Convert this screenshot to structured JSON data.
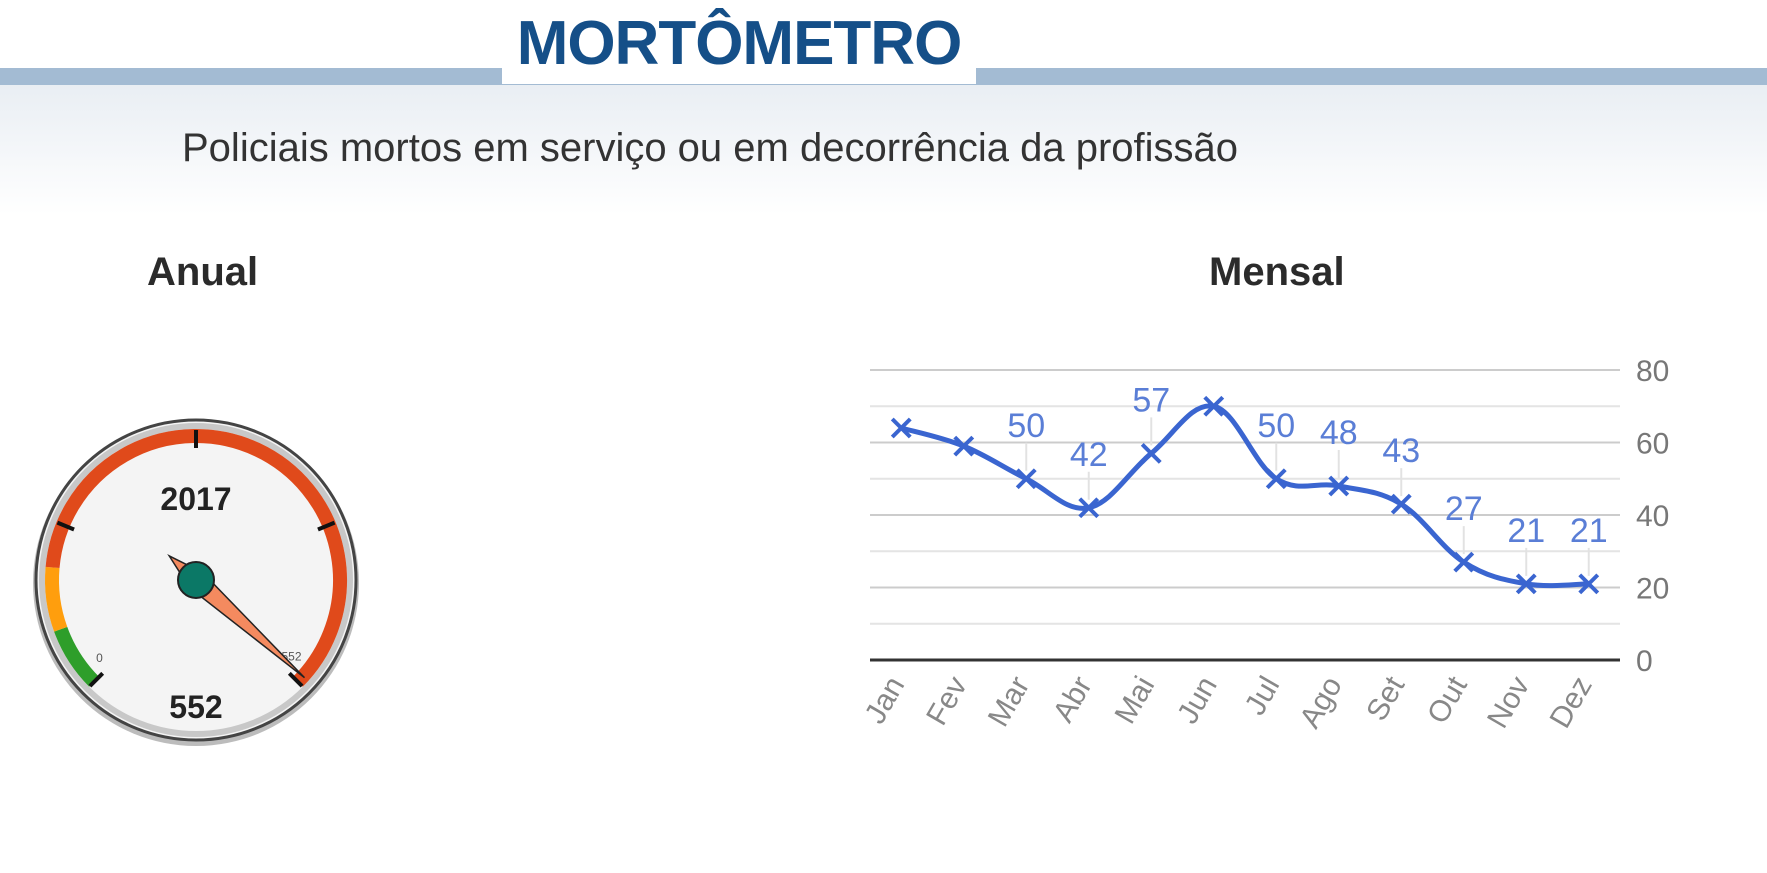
{
  "header": {
    "logo_text": "MORTÔMETRO",
    "subtitle": "Policiais mortos em serviço ou em decorrência da profissão"
  },
  "annual": {
    "title": "Anual",
    "gauge": {
      "year_label": "2017",
      "value_label": "552",
      "value": 552,
      "min": 0,
      "max": 552,
      "min_tick_label": "0",
      "max_tick_label": "552",
      "colors": {
        "bezel": "#e04a1b",
        "mid": "#ff9e0d",
        "low": "#2e9e2a",
        "hub": "#0b7866",
        "needle": "#f48a5f"
      }
    }
  },
  "monthly": {
    "title": "Mensal"
  },
  "chart_data": {
    "type": "line",
    "x": [
      "Jan",
      "Fev",
      "Mar",
      "Abr",
      "Mai",
      "Jun",
      "Jul",
      "Ago",
      "Set",
      "Out",
      "Nov",
      "Dez"
    ],
    "series": [
      {
        "values": [
          64,
          59,
          50,
          42,
          57,
          70,
          50,
          48,
          43,
          27,
          21,
          21
        ]
      }
    ],
    "data_labels": [
      "",
      "",
      "50",
      "42",
      "57",
      "",
      "50",
      "48",
      "43",
      "27",
      "21",
      "21"
    ],
    "y_ticks": [
      "0",
      "20",
      "40",
      "60",
      "80"
    ],
    "ylim": [
      0,
      80
    ],
    "grid": true,
    "line_color": "#3a65d0",
    "label_color": "#5a7ed6"
  }
}
